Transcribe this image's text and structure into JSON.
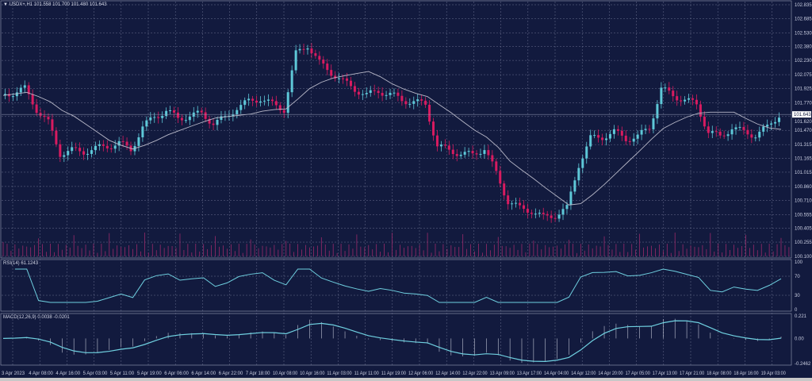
{
  "header": {
    "symbol": "USDX+,H1",
    "ohlc": "101.558 101.700 101.480 101.643"
  },
  "rsi_label": "RSI(14) 61.1243",
  "macd_label": "MACD(12,26,9) 0.0038 -0.0201",
  "current_price": "101.643",
  "colors": {
    "background": "#121a3e",
    "bull": "#5ec8d8",
    "bear": "#d81b60",
    "ma": "#b8b8c8",
    "indicator": "#6fd0e0",
    "grid": "#6a7090"
  },
  "chart_data": [
    {
      "type": "candlestick",
      "title": "USDX+,H1",
      "ylim": [
        100.1,
        102.835
      ],
      "y_ticks": [
        "102.835",
        "102.685",
        "102.530",
        "102.380",
        "102.230",
        "102.075",
        "101.925",
        "101.770",
        "101.620",
        "101.470",
        "101.315",
        "101.165",
        "101.015",
        "100.860",
        "100.710",
        "100.555",
        "100.405",
        "100.255",
        "100.100"
      ],
      "x_ticks": [
        "3 Apr 2023",
        "4 Apr 08:00",
        "4 Apr 16:00",
        "5 Apr 03:00",
        "5 Apr 11:00",
        "5 Apr 19:00",
        "6 Apr 06:00",
        "6 Apr 14:00",
        "6 Apr 22:00",
        "7 Apr 18:00",
        "10 Apr 08:00",
        "10 Apr 16:00",
        "11 Apr 03:00",
        "11 Apr 11:00",
        "11 Apr 19:00",
        "12 Apr 06:00",
        "12 Apr 14:00",
        "12 Apr 22:00",
        "13 Apr 09:00",
        "13 Apr 17:00",
        "14 Apr 04:00",
        "14 Apr 12:00",
        "14 Apr 20:00",
        "17 Apr 05:00",
        "17 Apr 13:00",
        "17 Apr 21:00",
        "18 Apr 08:00",
        "18 Apr 16:00",
        "19 Apr 03:00"
      ],
      "closes": [
        101.85,
        101.88,
        101.92,
        101.7,
        101.55,
        101.22,
        101.25,
        101.24,
        101.27,
        101.3,
        101.33,
        101.26,
        101.5,
        101.62,
        101.68,
        101.6,
        101.63,
        101.65,
        101.55,
        101.6,
        101.72,
        101.78,
        101.82,
        101.75,
        101.7,
        102.3,
        102.4,
        102.2,
        102.1,
        102.0,
        101.92,
        101.85,
        101.9,
        101.86,
        101.8,
        101.78,
        101.75,
        101.3,
        101.25,
        101.22,
        101.2,
        101.28,
        101.0,
        100.7,
        100.62,
        100.6,
        100.52,
        100.55,
        100.62,
        101.1,
        101.38,
        101.4,
        101.45,
        101.38,
        101.4,
        101.5,
        101.92,
        101.85,
        101.8,
        101.75,
        101.45,
        101.4,
        101.5,
        101.45,
        101.42,
        101.5,
        101.643
      ],
      "moving_average": true,
      "volume": true
    },
    {
      "type": "line",
      "title": "RSI(14)",
      "ylim": [
        0,
        100
      ],
      "y_ticks": [
        "100",
        "70",
        "30",
        "0"
      ]
    },
    {
      "type": "line",
      "title": "MACD(12,26,9)",
      "ylim": [
        -0.2462,
        0.221
      ],
      "y_ticks": [
        "0.221",
        "0.00",
        "-0.2462"
      ]
    }
  ]
}
